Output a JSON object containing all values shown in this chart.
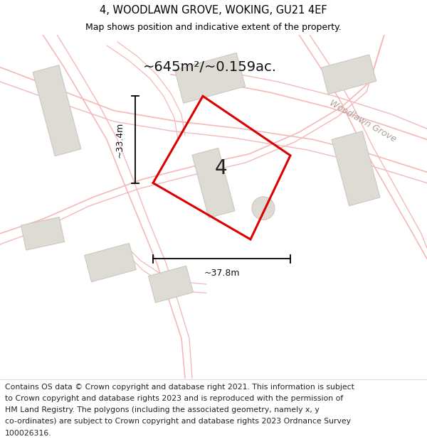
{
  "title_line1": "4, WOODLAWN GROVE, WOKING, GU21 4EF",
  "title_line2": "Map shows position and indicative extent of the property.",
  "area_text": "~645m²/~0.159ac.",
  "number_label": "4",
  "dim_vertical": "~33.4m",
  "dim_horizontal": "~37.8m",
  "street_label": "Woodlawn Grove",
  "footer_lines": [
    "Contains OS data © Crown copyright and database right 2021. This information is subject",
    "to Crown copyright and database rights 2023 and is reproduced with the permission of",
    "HM Land Registry. The polygons (including the associated geometry, namely x, y",
    "co-ordinates) are subject to Crown copyright and database rights 2023 Ordnance Survey",
    "100026316."
  ],
  "map_bg": "#f7f6f4",
  "plot_color": "#dd0000",
  "building_fill": "#dedad4",
  "building_edge": "#c8c4be",
  "road_color": "#f5b8b8",
  "title_fontsize": 10.5,
  "subtitle_fontsize": 9,
  "area_fontsize": 14,
  "label_fontsize": 20,
  "dim_fontsize": 9,
  "street_fontsize": 9,
  "footer_fontsize": 7.8
}
